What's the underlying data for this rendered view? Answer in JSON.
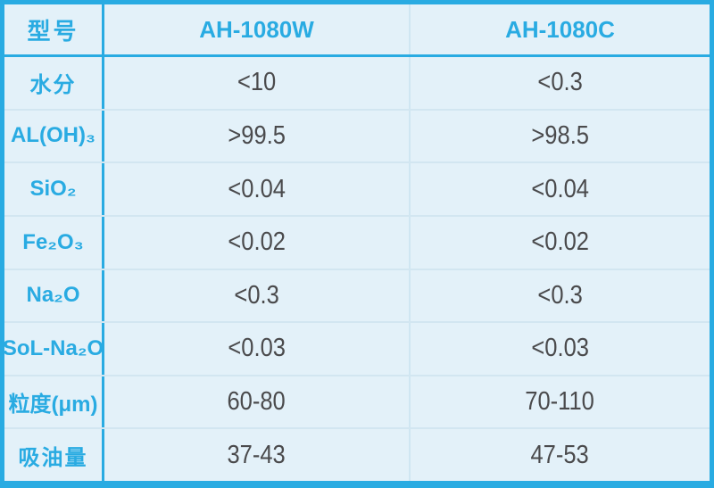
{
  "chart_data": {
    "type": "table",
    "title": "",
    "columns": [
      "型号",
      "AH-1080W",
      "AH-1080C"
    ],
    "rows": [
      [
        "水分",
        "<10",
        "<0.3"
      ],
      [
        "AL(OH)₃",
        ">99.5",
        ">98.5"
      ],
      [
        "SiO₂",
        "<0.04",
        "<0.04"
      ],
      [
        "Fe₂O₃",
        "<0.02",
        "<0.02"
      ],
      [
        "Na₂O",
        "<0.3",
        "<0.3"
      ],
      [
        "SoL-Na₂O",
        "<0.03",
        "<0.03"
      ],
      [
        "粒度(μm)",
        "60-80",
        "70-110"
      ],
      [
        "吸油量",
        "37-43",
        "47-53"
      ]
    ],
    "layout": {
      "grid": "on",
      "header_position": "top-row-and-left-column"
    },
    "colors": {
      "accent_cyan": "#29abe2",
      "background": "#e3f1f9",
      "value_text": "#4a4a4c",
      "light_gridline": "#cfe6f2"
    }
  }
}
